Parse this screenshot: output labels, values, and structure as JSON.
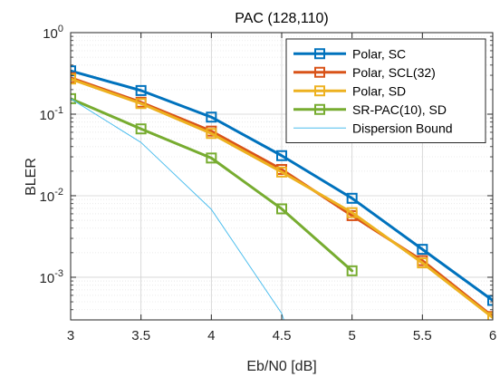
{
  "chart_data": {
    "type": "line",
    "title": "PAC (128,110)",
    "xlabel": "Eb/N0 [dB]",
    "ylabel": "BLER",
    "xlim": [
      3,
      6
    ],
    "ylim": [
      0.0003,
      1
    ],
    "yscale": "log",
    "xticks": [
      "3",
      "3.5",
      "4",
      "4.5",
      "5",
      "5.5",
      "6"
    ],
    "yticks": [
      {
        "base": "10",
        "exp": "0"
      },
      {
        "base": "10",
        "exp": "-1"
      },
      {
        "base": "10",
        "exp": "-2"
      },
      {
        "base": "10",
        "exp": "-3"
      }
    ],
    "grid": true,
    "minor_grid": true,
    "legend_position": "top-right",
    "series": [
      {
        "name": "Polar, SC",
        "color": "#0072BD",
        "marker": "square",
        "x": [
          3,
          3.5,
          4,
          4.5,
          5,
          5.5,
          6
        ],
        "y": [
          0.34,
          0.195,
          0.092,
          0.031,
          0.0093,
          0.0022,
          0.00052
        ]
      },
      {
        "name": "Polar, SCL(32)",
        "color": "#D95319",
        "marker": "square",
        "x": [
          3,
          3.5,
          4,
          4.5,
          5,
          5.5,
          6
        ],
        "y": [
          0.28,
          0.14,
          0.062,
          0.021,
          0.0057,
          0.0016,
          0.00033
        ]
      },
      {
        "name": "Polar, SD",
        "color": "#EDB120",
        "marker": "square",
        "x": [
          3,
          3.5,
          4,
          4.5,
          5,
          5.5,
          6
        ],
        "y": [
          0.27,
          0.135,
          0.058,
          0.0195,
          0.0062,
          0.0015,
          0.00032
        ]
      },
      {
        "name": "SR-PAC(10), SD",
        "color": "#77AC30",
        "marker": "square",
        "x": [
          3,
          3.5,
          4,
          4.5,
          5
        ],
        "y": [
          0.155,
          0.066,
          0.029,
          0.0069,
          0.0012
        ]
      },
      {
        "name": "Dispersion Bound",
        "color": "#4DBEEE",
        "marker": "none",
        "x": [
          3,
          3.5,
          4,
          4.5,
          4.55
        ],
        "y": [
          0.155,
          0.045,
          0.0068,
          0.00036,
          0.0002
        ]
      }
    ]
  }
}
